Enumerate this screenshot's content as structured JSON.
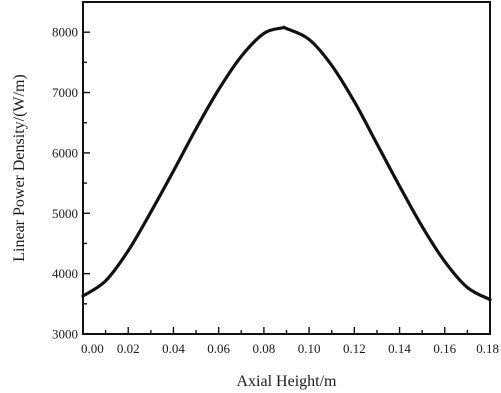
{
  "chart_data": {
    "type": "line",
    "title": "",
    "xlabel": "Axial Height/m",
    "ylabel": "Linear Power Density/(W/m)",
    "xlim": [
      0,
      0.18
    ],
    "ylim": [
      3000,
      8500
    ],
    "x_ticks": [
      "0.00",
      "0.02",
      "0.04",
      "0.06",
      "0.08",
      "0.10",
      "0.12",
      "0.14",
      "0.16",
      "0.18"
    ],
    "y_ticks": [
      "3000",
      "4000",
      "5000",
      "6000",
      "7000",
      "8000"
    ],
    "grid": false,
    "series": [
      {
        "x": [
          0.0,
          0.01,
          0.02,
          0.03,
          0.04,
          0.05,
          0.06,
          0.07,
          0.08,
          0.088,
          0.09,
          0.1,
          0.11,
          0.12,
          0.13,
          0.14,
          0.15,
          0.16,
          0.17,
          0.18
        ],
        "values": [
          3630,
          3880,
          4380,
          5020,
          5700,
          6400,
          7050,
          7600,
          7980,
          8070,
          8060,
          7880,
          7450,
          6850,
          6150,
          5450,
          4780,
          4200,
          3770,
          3570
        ]
      }
    ]
  }
}
